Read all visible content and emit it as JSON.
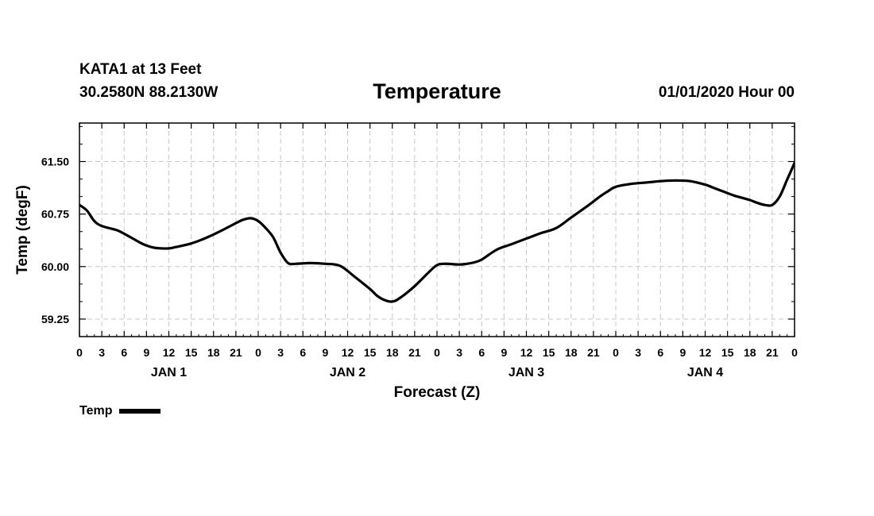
{
  "header": {
    "station": "KATA1 at 13 Feet",
    "coords": "30.2580N 88.2130W",
    "title": "Temperature",
    "stamp": "01/01/2020 Hour 00"
  },
  "chart_data": {
    "type": "line",
    "title": "Temperature",
    "xlabel": "Forecast (Z)",
    "ylabel": "Temp (degF)",
    "xlim": [
      0,
      96
    ],
    "ylim": [
      59.0,
      62.05
    ],
    "yticks": [
      59.25,
      60.0,
      60.75,
      61.5
    ],
    "ytick_labels": [
      "59.25",
      "60.00",
      "60.75",
      "61.50"
    ],
    "grid": true,
    "xtick_hours": [
      0,
      3,
      6,
      9,
      12,
      15,
      18,
      21,
      24,
      27,
      30,
      33,
      36,
      39,
      42,
      45,
      48,
      51,
      54,
      57,
      60,
      63,
      66,
      69,
      72,
      75,
      78,
      81,
      84,
      87,
      90,
      93,
      96
    ],
    "xtick_labels": [
      "0",
      "3",
      "6",
      "9",
      "12",
      "15",
      "18",
      "21",
      "0",
      "3",
      "6",
      "9",
      "12",
      "15",
      "18",
      "21",
      "0",
      "3",
      "6",
      "9",
      "12",
      "15",
      "18",
      "21",
      "0",
      "3",
      "6",
      "9",
      "12",
      "15",
      "18",
      "21",
      "0"
    ],
    "day_labels": [
      {
        "label": "JAN 1",
        "hour": 12
      },
      {
        "label": "JAN 2",
        "hour": 36
      },
      {
        "label": "JAN 3",
        "hour": 60
      },
      {
        "label": "JAN 4",
        "hour": 84
      }
    ],
    "legend": {
      "position": "bottom-left",
      "entries": [
        "Temp"
      ]
    },
    "series": [
      {
        "name": "Temp",
        "x": [
          0,
          1,
          2,
          3,
          5,
          6,
          8,
          9,
          10,
          11,
          12,
          13,
          15,
          17,
          19,
          21,
          22,
          23,
          24,
          25,
          26,
          27,
          28,
          29,
          31,
          33,
          35,
          37,
          39,
          40,
          41,
          42,
          43,
          45,
          47,
          48,
          49,
          51,
          52,
          53,
          54,
          56,
          58,
          60,
          61,
          62,
          64,
          66,
          68,
          69,
          70,
          71,
          72,
          74,
          76,
          77,
          78,
          80,
          82,
          84,
          85,
          86,
          87,
          88,
          90,
          91,
          92,
          93,
          94,
          95,
          96
        ],
        "y": [
          60.88,
          60.8,
          60.65,
          60.58,
          60.52,
          60.47,
          60.35,
          60.3,
          60.27,
          60.26,
          60.26,
          60.28,
          60.33,
          60.41,
          60.51,
          60.62,
          60.67,
          60.69,
          60.65,
          60.55,
          60.42,
          60.2,
          60.05,
          60.04,
          60.05,
          60.04,
          60.01,
          59.85,
          59.68,
          59.58,
          59.52,
          59.5,
          59.55,
          59.72,
          59.93,
          60.02,
          60.04,
          60.03,
          60.04,
          60.06,
          60.1,
          60.24,
          60.32,
          60.4,
          60.44,
          60.48,
          60.55,
          60.7,
          60.85,
          60.93,
          61.01,
          61.08,
          61.14,
          61.18,
          61.2,
          61.21,
          61.22,
          61.23,
          61.22,
          61.17,
          61.13,
          61.09,
          61.05,
          61.01,
          60.95,
          60.91,
          60.88,
          60.88,
          61.0,
          61.24,
          61.48
        ]
      }
    ]
  },
  "legend_label": "Temp",
  "colors": {
    "line": "#000000",
    "grid": "#c8c8c8",
    "background": "#ffffff"
  }
}
